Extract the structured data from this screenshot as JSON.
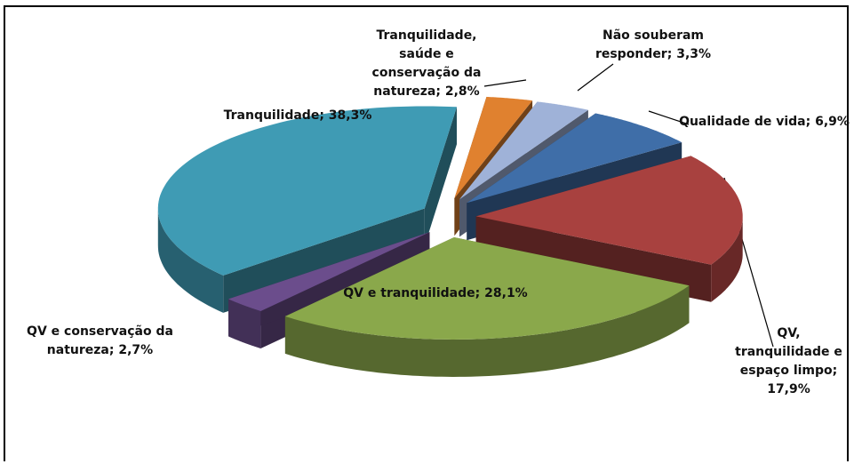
{
  "chart_data": {
    "type": "pie3d",
    "categories": [
      "Tranquilidade, saúde e conservação da natureza",
      "Não souberam responder",
      "Qualidade de vida",
      "QV, tranquilidade e espaço limpo",
      "QV e tranquilidade",
      "QV e conservação da natureza",
      "Tranquilidade"
    ],
    "values": [
      2.8,
      3.3,
      6.9,
      17.9,
      28.1,
      2.7,
      38.3
    ],
    "value_labels": [
      "2,8%",
      "3,3%",
      "6,9%",
      "17,9%",
      "28,1%",
      "2,7%",
      "38,3%"
    ],
    "label_separator": ";",
    "colors": [
      "#e0812f",
      "#9fb2d8",
      "#3f6ea8",
      "#a8413f",
      "#8aa84b",
      "#6b4d8c",
      "#3f9bb4"
    ]
  }
}
